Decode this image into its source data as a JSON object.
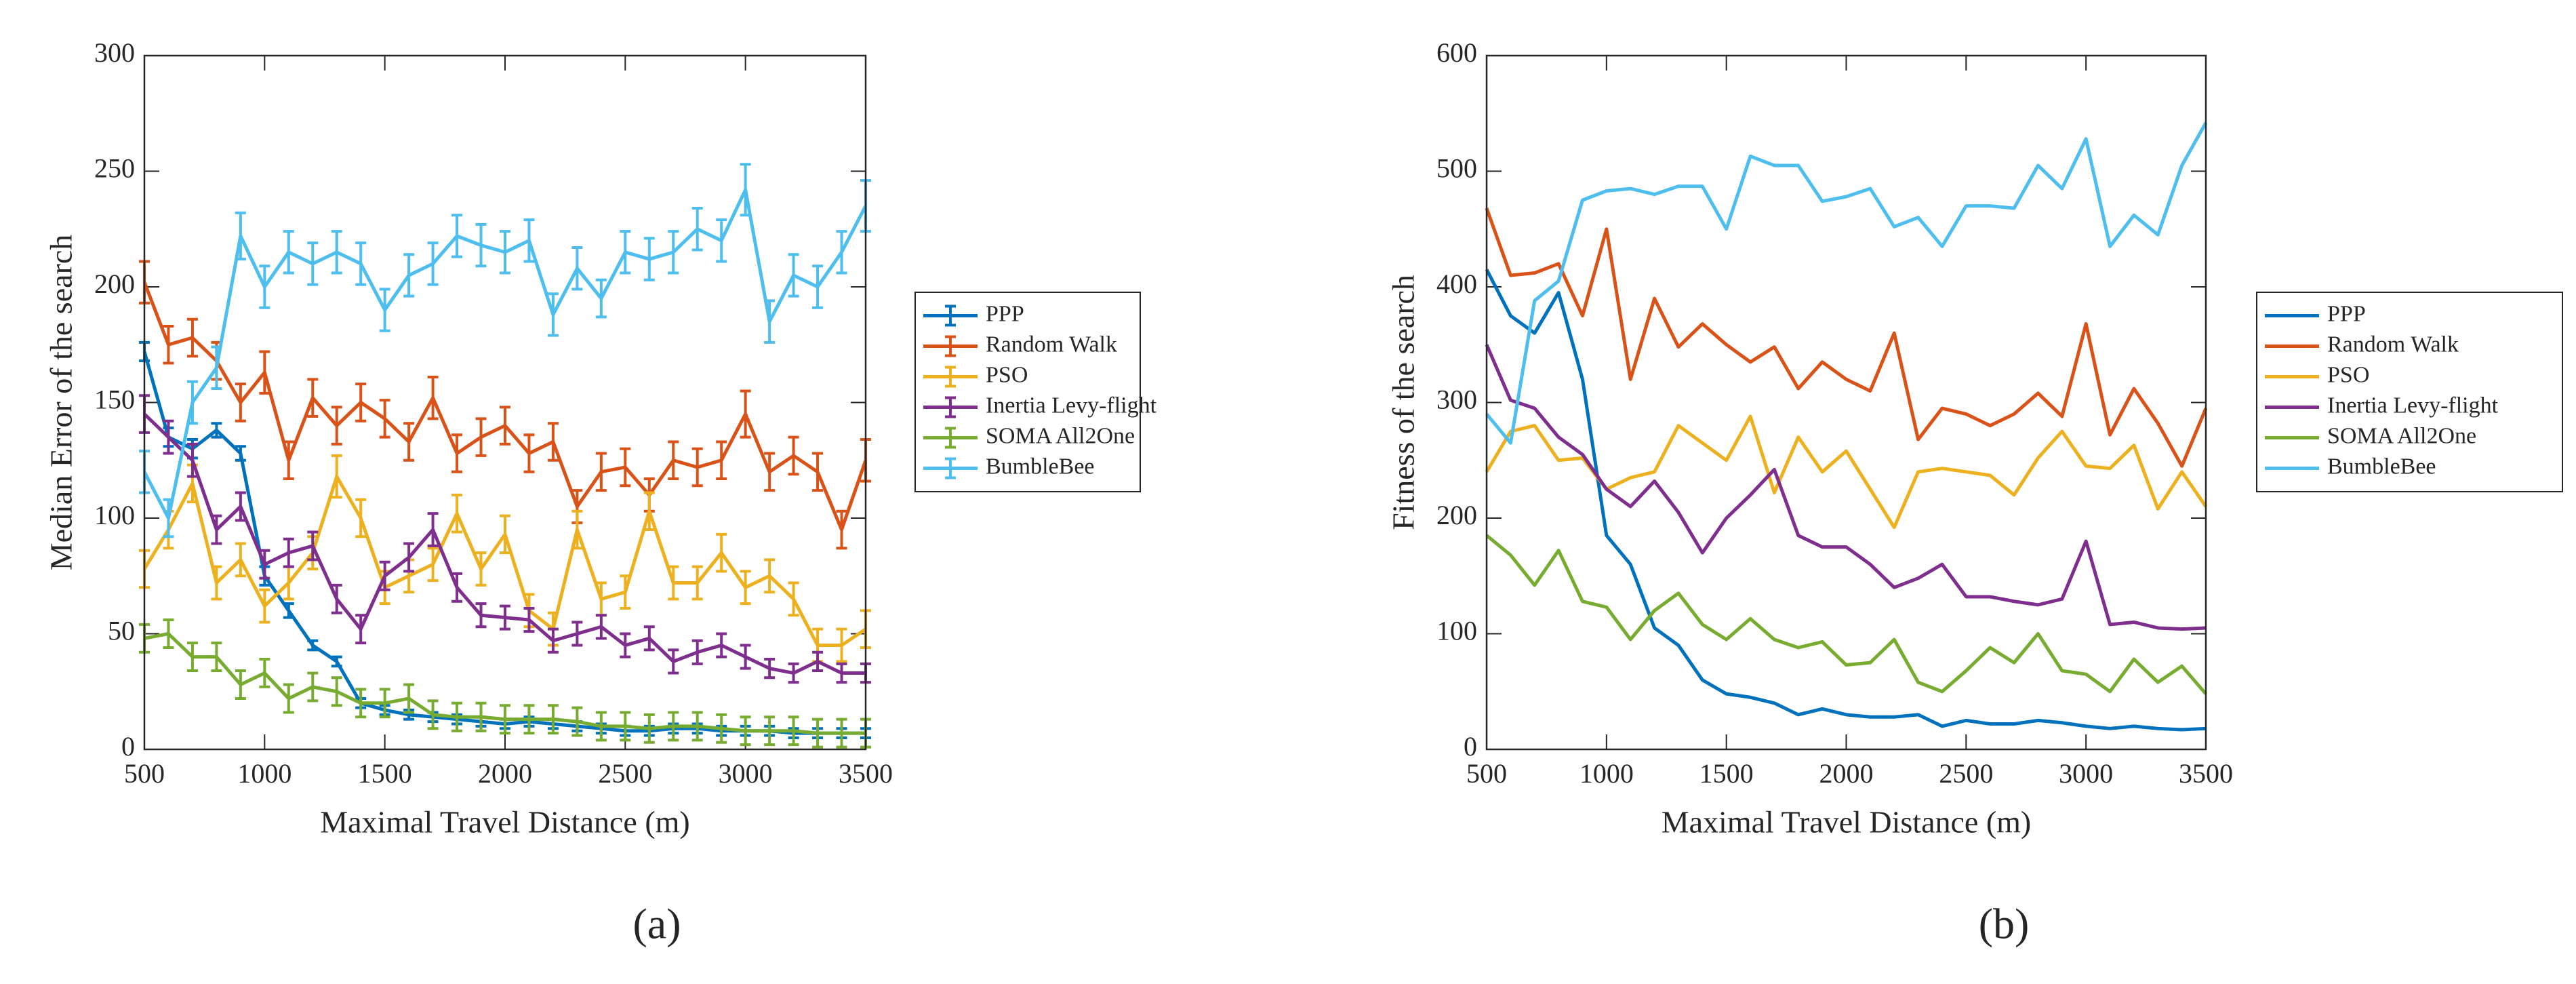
{
  "chart_data": [
    {
      "type": "line",
      "caption": "(a)",
      "xlabel": "Maximal Travel Distance (m)",
      "ylabel": "Median Error of the search",
      "x": [
        500,
        600,
        700,
        800,
        900,
        1000,
        1100,
        1200,
        1300,
        1400,
        1500,
        1600,
        1700,
        1800,
        1900,
        2000,
        2100,
        2200,
        2300,
        2400,
        2500,
        2600,
        2700,
        2800,
        2900,
        3000,
        3100,
        3200,
        3300,
        3400,
        3500
      ],
      "xlim": [
        500,
        3500
      ],
      "xticks": [
        500,
        1000,
        1500,
        2000,
        2500,
        3000,
        3500
      ],
      "ylim": [
        0,
        300
      ],
      "yticks": [
        0,
        50,
        100,
        150,
        200,
        250,
        300
      ],
      "legend": "right",
      "series": [
        {
          "name": "PPP",
          "color": "#0072bd",
          "values": [
            172,
            135,
            130,
            138,
            128,
            75,
            60,
            45,
            38,
            20,
            17,
            15,
            14,
            13,
            12,
            11,
            12,
            11,
            10,
            9,
            8,
            8,
            9,
            9,
            8,
            8,
            8,
            7,
            7,
            7,
            7
          ],
          "errors": [
            4,
            4,
            4,
            3,
            3,
            4,
            3,
            2,
            2,
            2,
            2,
            2,
            2,
            2,
            2,
            2,
            2,
            2,
            2,
            2,
            2,
            2,
            2,
            2,
            2,
            2,
            2,
            2,
            2,
            2,
            2
          ]
        },
        {
          "name": "Random Walk",
          "color": "#d95319",
          "values": [
            202,
            175,
            178,
            168,
            150,
            163,
            125,
            152,
            140,
            150,
            143,
            133,
            152,
            128,
            135,
            140,
            128,
            133,
            105,
            120,
            122,
            110,
            125,
            122,
            125,
            145,
            120,
            127,
            120,
            95,
            125
          ],
          "errors": [
            9,
            8,
            8,
            8,
            8,
            9,
            8,
            8,
            8,
            8,
            8,
            8,
            9,
            8,
            8,
            8,
            8,
            8,
            7,
            8,
            8,
            7,
            8,
            8,
            8,
            10,
            8,
            8,
            8,
            8,
            9
          ]
        },
        {
          "name": "PSO",
          "color": "#edb120",
          "values": [
            78,
            95,
            115,
            72,
            82,
            62,
            72,
            85,
            118,
            100,
            70,
            75,
            80,
            102,
            78,
            93,
            60,
            52,
            95,
            65,
            68,
            103,
            72,
            72,
            85,
            70,
            75,
            65,
            45,
            45,
            52
          ],
          "errors": [
            8,
            8,
            8,
            7,
            7,
            7,
            7,
            7,
            9,
            8,
            7,
            7,
            7,
            8,
            7,
            8,
            7,
            7,
            8,
            7,
            7,
            8,
            7,
            7,
            8,
            7,
            7,
            7,
            7,
            7,
            8
          ]
        },
        {
          "name": "Inertia Levy-flight",
          "color": "#7e2f8e",
          "values": [
            145,
            135,
            125,
            95,
            105,
            80,
            85,
            88,
            65,
            52,
            75,
            83,
            95,
            70,
            58,
            57,
            56,
            47,
            50,
            53,
            45,
            48,
            38,
            42,
            45,
            40,
            35,
            33,
            38,
            33,
            33
          ],
          "errors": [
            8,
            7,
            7,
            6,
            6,
            6,
            6,
            6,
            6,
            6,
            6,
            6,
            7,
            6,
            5,
            5,
            5,
            5,
            5,
            5,
            5,
            5,
            5,
            5,
            5,
            5,
            4,
            4,
            4,
            4,
            4
          ]
        },
        {
          "name": "SOMA All2One",
          "color": "#77ac30",
          "values": [
            48,
            50,
            40,
            40,
            28,
            33,
            22,
            27,
            25,
            20,
            20,
            22,
            15,
            14,
            14,
            13,
            13,
            13,
            12,
            10,
            10,
            9,
            10,
            10,
            9,
            8,
            8,
            8,
            7,
            7,
            7
          ],
          "errors": [
            6,
            6,
            6,
            6,
            6,
            6,
            6,
            6,
            6,
            6,
            6,
            6,
            6,
            6,
            6,
            6,
            6,
            6,
            6,
            6,
            6,
            6,
            6,
            6,
            6,
            6,
            6,
            6,
            6,
            6,
            6
          ]
        },
        {
          "name": "BumbleBee",
          "color": "#4dbeee",
          "values": [
            120,
            100,
            150,
            165,
            222,
            200,
            215,
            210,
            215,
            210,
            190,
            205,
            210,
            222,
            218,
            215,
            220,
            188,
            208,
            195,
            215,
            212,
            215,
            225,
            220,
            242,
            185,
            205,
            200,
            215,
            235
          ],
          "errors": [
            9,
            8,
            9,
            9,
            10,
            9,
            9,
            9,
            9,
            9,
            9,
            9,
            9,
            9,
            9,
            9,
            9,
            9,
            9,
            8,
            9,
            9,
            9,
            9,
            9,
            11,
            9,
            9,
            9,
            9,
            11
          ]
        }
      ]
    },
    {
      "type": "line",
      "caption": "(b)",
      "xlabel": "Maximal Travel Distance (m)",
      "ylabel": "Fitness of the search",
      "x": [
        500,
        600,
        700,
        800,
        900,
        1000,
        1100,
        1200,
        1300,
        1400,
        1500,
        1600,
        1700,
        1800,
        1900,
        2000,
        2100,
        2200,
        2300,
        2400,
        2500,
        2600,
        2700,
        2800,
        2900,
        3000,
        3100,
        3200,
        3300,
        3400,
        3500
      ],
      "xlim": [
        500,
        3500
      ],
      "xticks": [
        500,
        1000,
        1500,
        2000,
        2500,
        3000,
        3500
      ],
      "ylim": [
        0,
        600
      ],
      "yticks": [
        0,
        100,
        200,
        300,
        400,
        500,
        600
      ],
      "legend": "right",
      "series": [
        {
          "name": "PPP",
          "color": "#0072bd",
          "values": [
            415,
            375,
            360,
            395,
            320,
            185,
            160,
            105,
            90,
            60,
            48,
            45,
            40,
            30,
            35,
            30,
            28,
            28,
            30,
            20,
            25,
            22,
            22,
            25,
            23,
            20,
            18,
            20,
            18,
            17,
            18
          ]
        },
        {
          "name": "Random Walk",
          "color": "#d95319",
          "values": [
            468,
            410,
            412,
            420,
            375,
            450,
            320,
            390,
            348,
            368,
            350,
            335,
            348,
            312,
            335,
            320,
            310,
            360,
            268,
            295,
            290,
            280,
            290,
            308,
            288,
            368,
            272,
            312,
            282,
            245,
            295
          ]
        },
        {
          "name": "PSO",
          "color": "#edb120",
          "values": [
            240,
            275,
            280,
            250,
            252,
            225,
            235,
            240,
            280,
            265,
            250,
            288,
            222,
            270,
            240,
            258,
            225,
            192,
            240,
            243,
            240,
            237,
            220,
            252,
            275,
            245,
            243,
            263,
            208,
            240,
            210
          ]
        },
        {
          "name": "Inertia Levy-flight",
          "color": "#7e2f8e",
          "values": [
            350,
            302,
            295,
            270,
            255,
            225,
            210,
            232,
            205,
            170,
            200,
            220,
            242,
            185,
            175,
            175,
            160,
            140,
            148,
            160,
            132,
            132,
            128,
            125,
            130,
            180,
            108,
            110,
            105,
            104,
            105
          ]
        },
        {
          "name": "SOMA All2One",
          "color": "#77ac30",
          "values": [
            185,
            168,
            142,
            172,
            128,
            123,
            95,
            120,
            135,
            108,
            95,
            113,
            95,
            88,
            93,
            73,
            75,
            95,
            58,
            50,
            68,
            88,
            75,
            100,
            68,
            65,
            50,
            78,
            58,
            72,
            48
          ]
        },
        {
          "name": "BumbleBee",
          "color": "#4dbeee",
          "values": [
            290,
            265,
            388,
            405,
            475,
            483,
            485,
            480,
            487,
            487,
            450,
            513,
            505,
            505,
            474,
            478,
            485,
            452,
            460,
            435,
            470,
            470,
            468,
            505,
            485,
            528,
            435,
            462,
            445,
            505,
            542
          ]
        }
      ]
    }
  ]
}
